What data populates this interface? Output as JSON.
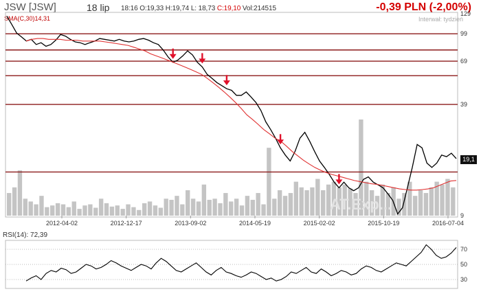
{
  "header": {
    "ticker": "JSW [JSW]",
    "date": "18 lip",
    "time": "18:16",
    "open": "O:19,33",
    "high": "H:19,74",
    "low": "L: 18,73",
    "close": "C:19,10",
    "volume": "Vol:214515",
    "change": "-0,39 PLN (-2,00%)",
    "interval": "Interwał: tydzień",
    "sma_label": "SMA(C,30)14,31",
    "watermark": "AT.Exp..."
  },
  "colors": {
    "price": "#000000",
    "sma": "#e03030",
    "volume": "#c4c4c4",
    "level_lines": "#8b1a1a",
    "arrows": "#e0102a",
    "change": "#d40000"
  },
  "chart_data": [
    {
      "type": "line",
      "role": "price",
      "y_scale": "log",
      "x_tick_labels": [
        "2012-04-02",
        "2012-12-17",
        "2013-09-02",
        "2014-05-19",
        "2015-02-02",
        "2015-10-19",
        "2016-07-04"
      ],
      "y_tick_labels": [
        "129",
        "99",
        "69",
        "39",
        "9"
      ],
      "ylim": [
        9,
        129
      ],
      "last_value_label": "19,1",
      "series": [
        {
          "values": [
            125,
            112,
            100,
            95,
            90,
            92,
            86,
            88,
            84,
            86,
            91,
            98,
            96,
            92,
            89,
            88,
            86,
            88,
            90,
            93,
            92,
            91,
            90,
            92,
            90,
            89,
            90,
            92,
            93,
            91,
            88,
            86,
            80,
            73,
            68,
            70,
            74,
            79,
            75,
            68,
            64,
            58,
            55,
            52,
            50,
            48,
            47,
            44,
            44,
            46,
            43,
            40,
            36,
            31,
            28,
            25,
            22,
            20,
            18.5,
            21,
            25,
            27,
            24,
            21,
            18.5,
            17,
            15.5,
            14,
            13,
            14,
            13,
            12.5,
            13,
            14.5,
            15,
            14,
            13.5,
            13,
            12,
            11,
            9.2,
            10,
            13,
            17,
            23,
            22,
            18,
            17,
            18,
            20,
            19.6,
            20.5,
            19.1
          ]
        },
        {
          "values": [
            90,
            92,
            93,
            93,
            92,
            92,
            92,
            91,
            91,
            91,
            90,
            90,
            90,
            90,
            89,
            88,
            87,
            86,
            85,
            83,
            81,
            79,
            76,
            74,
            72,
            70,
            68,
            66,
            64,
            62,
            60,
            58,
            55,
            52,
            49,
            46,
            43,
            40,
            37,
            34,
            32,
            30,
            28,
            26.5,
            25,
            24,
            22.5,
            21,
            19.8,
            18.7,
            17.8,
            17,
            16.4,
            15.9,
            15.5,
            15.2,
            14.9,
            14.6,
            14.3,
            14.1,
            13.9,
            13.7,
            13.6,
            13.4,
            13.2,
            13,
            12.8,
            12.7,
            12.6,
            12.6,
            12.7,
            12.8,
            13,
            13.4,
            13.8,
            14.2,
            14.31
          ]
        }
      ],
      "volume": [
        40,
        50,
        80,
        30,
        25,
        20,
        35,
        15,
        18,
        22,
        20,
        15,
        25,
        12,
        18,
        20,
        14,
        30,
        22,
        16,
        18,
        12,
        20,
        15,
        10,
        22,
        25,
        18,
        14,
        30,
        28,
        35,
        20,
        45,
        30,
        25,
        55,
        28,
        30,
        22,
        40,
        25,
        30,
        18,
        35,
        28,
        40,
        20,
        120,
        30,
        45,
        35,
        40,
        60,
        50,
        45,
        50,
        65,
        45,
        55,
        60,
        50,
        55,
        48,
        40,
        170,
        60,
        45,
        35,
        55,
        40,
        50,
        30,
        40,
        60,
        35,
        45,
        40,
        50,
        60,
        55,
        65,
        50
      ]
    },
    {
      "type": "line",
      "role": "rsi",
      "label": "RSI(14): 72,39",
      "y_tick_labels": [
        "70",
        "50",
        "30"
      ],
      "ylim": [
        20,
        80
      ],
      "values": [
        28,
        32,
        35,
        30,
        38,
        42,
        40,
        45,
        43,
        38,
        40,
        45,
        50,
        48,
        44,
        46,
        50,
        55,
        52,
        48,
        45,
        42,
        46,
        50,
        48,
        44,
        52,
        58,
        54,
        48,
        42,
        40,
        44,
        48,
        52,
        46,
        40,
        36,
        42,
        46,
        40,
        38,
        35,
        33,
        36,
        40,
        38,
        34,
        30,
        32,
        28,
        30,
        34,
        40,
        38,
        42,
        46,
        40,
        38,
        44,
        40,
        35,
        38,
        42,
        40,
        36,
        38,
        44,
        48,
        46,
        42,
        40,
        44,
        48,
        52,
        50,
        48,
        54,
        60,
        66,
        76,
        70,
        62,
        58,
        60,
        65,
        72.39
      ]
    }
  ]
}
